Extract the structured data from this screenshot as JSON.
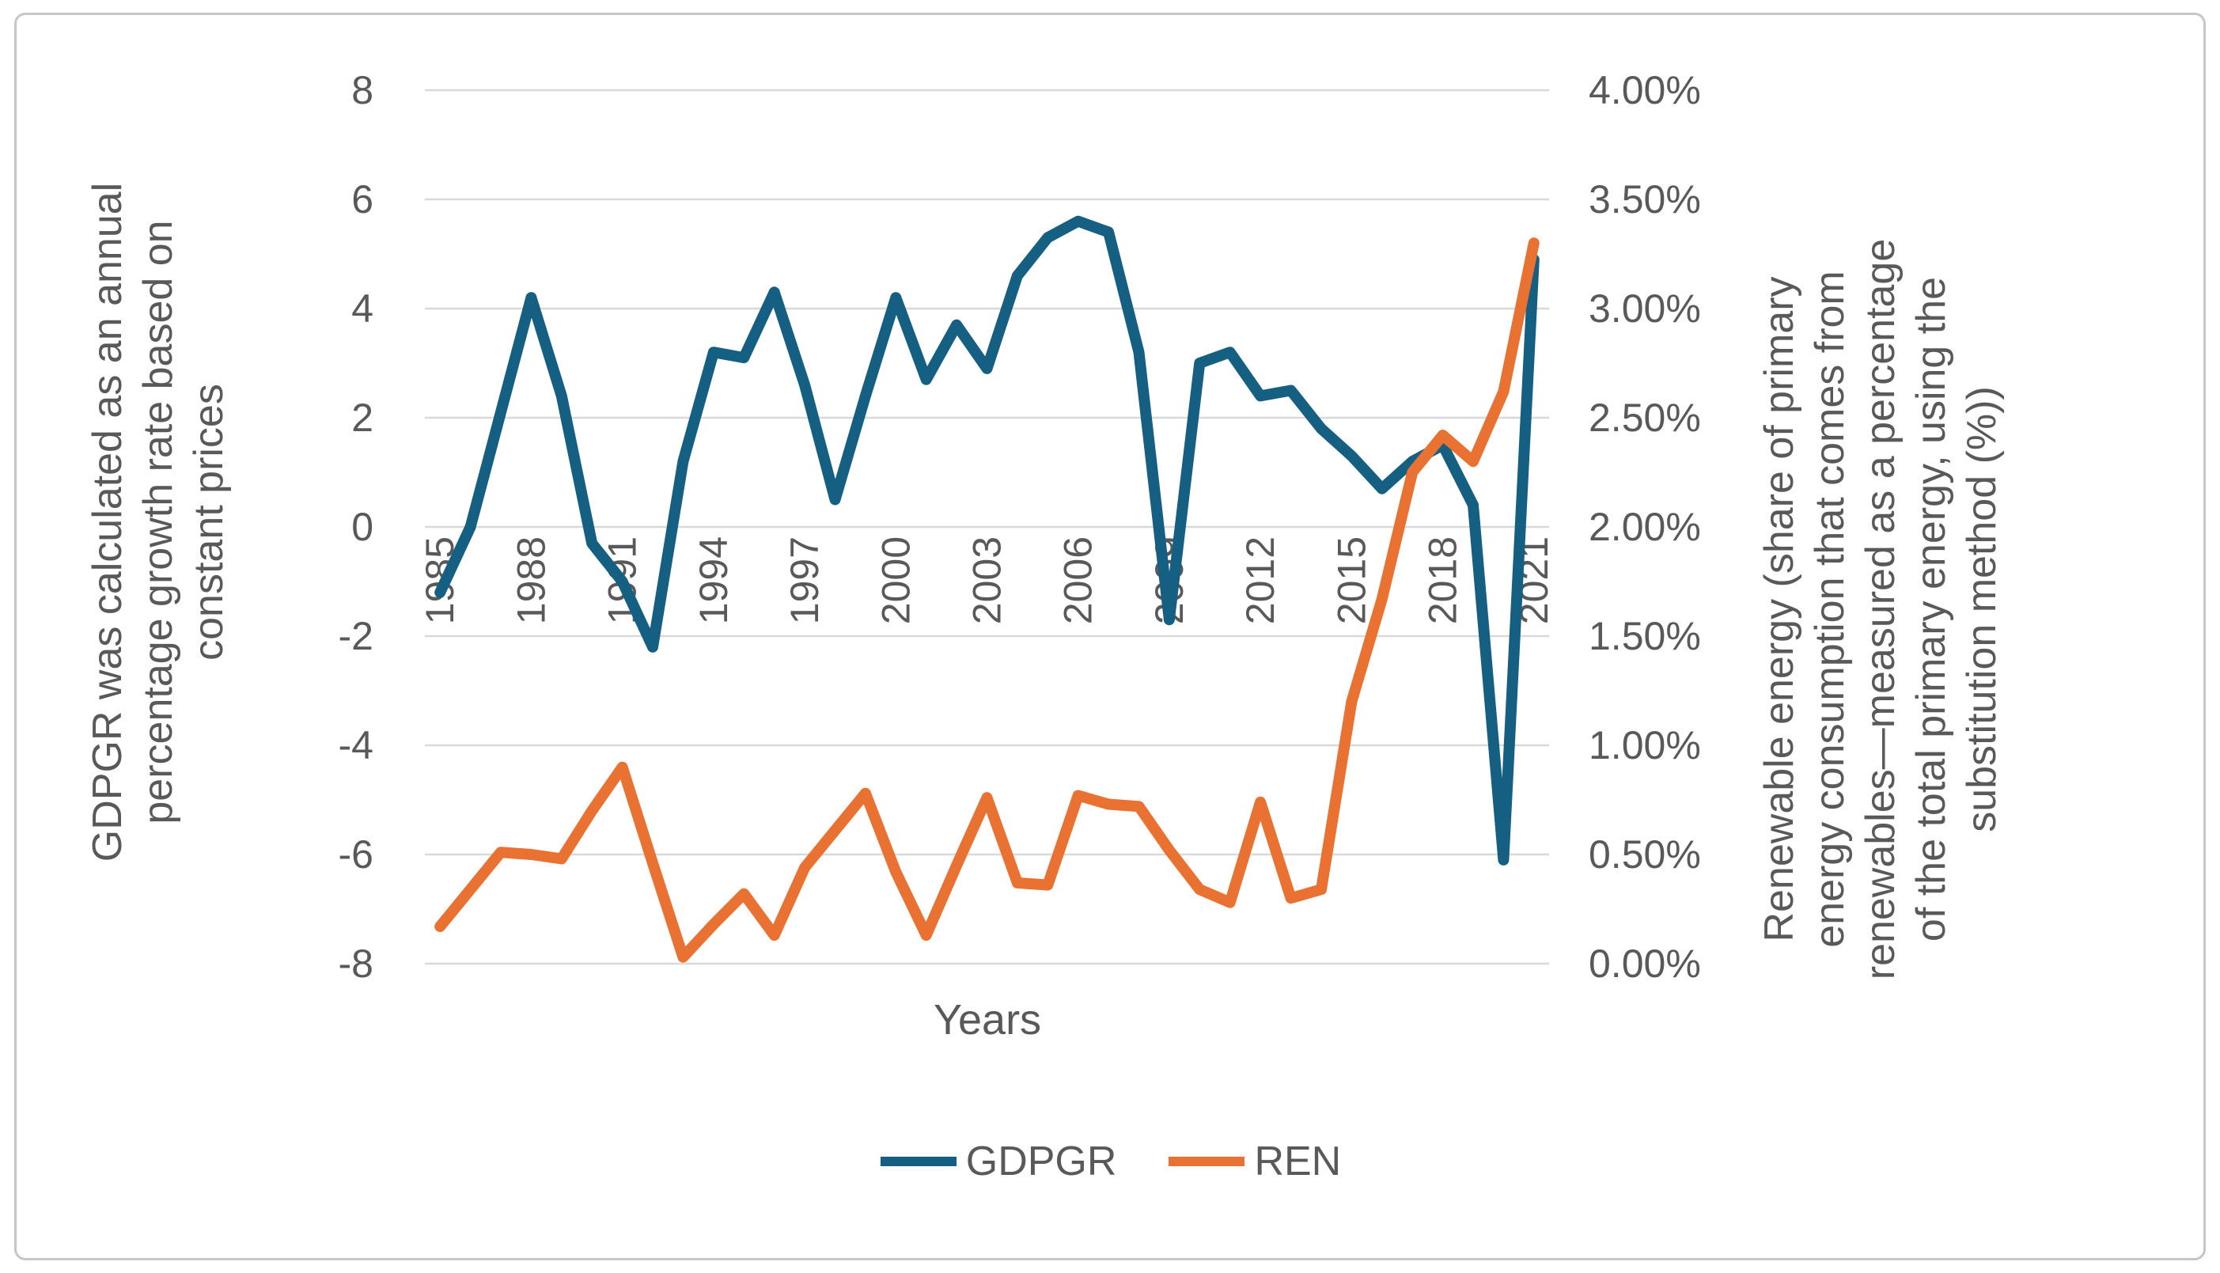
{
  "figure": {
    "background": "#ffffff",
    "border_color": "#c6c6c6",
    "text_color": "#595959",
    "gridline_color": "#d9d9d9"
  },
  "chart_data": {
    "type": "line",
    "grid": true,
    "legend_position": "bottom",
    "x": [
      1985,
      1986,
      1987,
      1988,
      1989,
      1990,
      1991,
      1992,
      1993,
      1994,
      1995,
      1996,
      1997,
      1998,
      1999,
      2000,
      2001,
      2002,
      2003,
      2004,
      2005,
      2006,
      2007,
      2008,
      2009,
      2010,
      2011,
      2012,
      2013,
      2014,
      2015,
      2016,
      2017,
      2018,
      2019,
      2020,
      2021
    ],
    "x_tick_labels": [
      "1985",
      "1988",
      "1991",
      "1994",
      "1997",
      "2000",
      "2003",
      "2006",
      "2009",
      "2012",
      "2015",
      "2018",
      "2021"
    ],
    "x_axis": {
      "title": "Years"
    },
    "left_axis": {
      "min": -8,
      "max": 8,
      "step": 2,
      "tick_labels": [
        "8",
        "6",
        "4",
        "2",
        "0",
        "-2",
        "-4",
        "-6",
        "-8"
      ],
      "title_lines": [
        "GDPGR was calculated as an annual",
        "percentage growth rate based on",
        "constant prices"
      ]
    },
    "right_axis": {
      "min": 0,
      "max": 4,
      "tick_labels": [
        "4.00%",
        "3.50%",
        "3.00%",
        "2.50%",
        "2.00%",
        "1.50%",
        "1.00%",
        "0.50%",
        "0.00%"
      ],
      "title_lines": [
        "Renewable energy (share of primary",
        "energy consumption that comes from",
        "renewables—measured as a percentage",
        "of the total primary energy, using the",
        "substitution method (%))"
      ]
    },
    "series": [
      {
        "name": "GDPGR",
        "axis": "left",
        "color": "#156082",
        "values": [
          -1.2,
          0.0,
          2.1,
          4.2,
          2.4,
          -0.3,
          -1.0,
          -2.2,
          1.2,
          3.2,
          3.1,
          4.3,
          2.6,
          0.5,
          2.4,
          4.2,
          2.7,
          3.7,
          2.9,
          4.6,
          5.3,
          5.6,
          5.4,
          3.2,
          -1.7,
          3.0,
          3.2,
          2.4,
          2.5,
          1.8,
          1.3,
          0.7,
          1.2,
          1.5,
          0.4,
          -6.1,
          4.9
        ]
      },
      {
        "name": "REN",
        "axis": "right",
        "color": "#E97132",
        "values": [
          0.17,
          0.34,
          0.51,
          0.5,
          0.48,
          0.7,
          0.9,
          0.46,
          0.03,
          0.18,
          0.32,
          0.13,
          0.44,
          0.61,
          0.78,
          0.42,
          0.13,
          0.45,
          0.76,
          0.37,
          0.36,
          0.77,
          0.73,
          0.72,
          0.52,
          0.34,
          0.28,
          0.74,
          0.3,
          0.34,
          1.2,
          1.67,
          2.25,
          2.42,
          2.3,
          2.62,
          3.3
        ]
      }
    ],
    "legend": [
      {
        "label": "GDPGR"
      },
      {
        "label": "REN"
      }
    ]
  }
}
